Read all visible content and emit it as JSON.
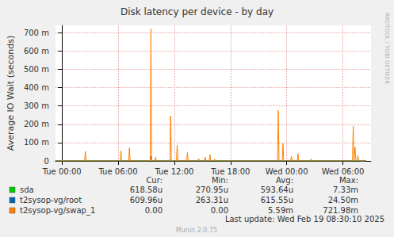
{
  "chart_data": {
    "type": "line",
    "title": "Disk latency per device - by day",
    "y_label": "Average IO Wait (seconds)",
    "xlim": [
      -0.7,
      33
    ],
    "xticks": [
      {
        "value": 0,
        "label": "Tue 00:00"
      },
      {
        "value": 6,
        "label": "Tue 06:00"
      },
      {
        "value": 12,
        "label": "Tue 12:00"
      },
      {
        "value": 18,
        "label": "Tue 18:00"
      },
      {
        "value": 24,
        "label": "Wed 00:00"
      },
      {
        "value": 30,
        "label": "Wed 06:00"
      }
    ],
    "ylim": [
      0,
      0.74
    ],
    "yticks": [
      0,
      {
        "value": 0.1,
        "label": "100 m"
      },
      {
        "value": 0.2,
        "label": "200 m"
      },
      {
        "value": 0.3,
        "label": "300 m"
      },
      {
        "value": 0.4,
        "label": "400 m"
      },
      {
        "value": 0.5,
        "label": "500 m"
      },
      {
        "value": 0.6,
        "label": "600 m"
      },
      {
        "value": 0.7,
        "label": "700 m"
      }
    ],
    "grid": true,
    "x": [
      -0.7,
      2.42,
      2.5,
      2.58,
      6.22,
      6.3,
      6.38,
      7.12,
      7.2,
      7.28,
      9.42,
      9.5,
      9.58,
      9.92,
      10.0,
      10.08,
      11.52,
      11.6,
      11.68,
      12.22,
      12.3,
      12.38,
      13.32,
      13.4,
      13.48,
      14.52,
      14.6,
      14.68,
      15.22,
      15.3,
      15.38,
      15.72,
      15.8,
      15.88,
      16.22,
      16.3,
      16.38,
      23.02,
      23.1,
      23.18,
      23.52,
      23.6,
      23.68,
      24.42,
      24.5,
      24.58,
      25.12,
      25.2,
      25.28,
      26.52,
      26.6,
      26.68,
      31.02,
      31.1,
      31.18,
      31.22,
      31.3,
      31.38,
      31.52,
      31.6,
      31.68,
      32.5
    ],
    "stats_header": [
      "Cur:",
      "Min:",
      "Avg:",
      "Max:"
    ],
    "series": [
      {
        "name": "sda",
        "color": "#00cc00",
        "stats": [
          "618.58u",
          "270.95u",
          "593.64u",
          "7.33m"
        ],
        "values": [
          0.0006,
          0.0006,
          0.0006,
          0.0006,
          0.0006,
          0.0006,
          0.0006,
          0.0006,
          0.0006,
          0.0006,
          0.0006,
          0.0006,
          0.0006,
          0.0006,
          0.0006,
          0.0006,
          0.0006,
          0.00733,
          0.0006,
          0.0006,
          0.0006,
          0.0006,
          0.0006,
          0.0006,
          0.0006,
          0.0006,
          0.0006,
          0.0006,
          0.0006,
          0.0006,
          0.0006,
          0.0006,
          0.0006,
          0.0006,
          0.0006,
          0.0006,
          0.0006,
          0.0006,
          0.0006,
          0.0006,
          0.00027,
          0.0006,
          0.0006,
          0.0006,
          0.0006,
          0.0006,
          0.0006,
          0.0006,
          0.0006,
          0.0006,
          0.0006,
          0.0006,
          0.0006,
          0.0006,
          0.0006,
          0.0006,
          0.0006,
          0.0006,
          0.0006,
          0.0006,
          0.0006,
          0.00062
        ]
      },
      {
        "name": "t2sysop-vg/root",
        "color": "#0066b3",
        "stats": [
          "609.96u",
          "263.31u",
          "615.55u",
          "24.50m"
        ],
        "values": [
          0.0006,
          0.0006,
          0.0006,
          0.0006,
          0.0006,
          0.0006,
          0.0006,
          0.0006,
          0.0006,
          0.0006,
          0.0006,
          0.0245,
          0.0006,
          0.0006,
          0.0006,
          0.0006,
          0.0006,
          0.0006,
          0.0006,
          0.0006,
          0.0006,
          0.0006,
          0.0006,
          0.0006,
          0.0006,
          0.0006,
          0.0006,
          0.0006,
          0.0006,
          0.0006,
          0.0006,
          0.0006,
          0.0006,
          0.0006,
          0.0006,
          0.0006,
          0.0006,
          0.0006,
          0.0006,
          0.0006,
          0.0006,
          0.00026,
          0.0006,
          0.0006,
          0.0006,
          0.0006,
          0.0006,
          0.0006,
          0.0006,
          0.0006,
          0.0006,
          0.0006,
          0.0006,
          0.0006,
          0.0006,
          0.0006,
          0.0006,
          0.0006,
          0.0006,
          0.0006,
          0.0006,
          0.00061
        ]
      },
      {
        "name": "t2sysop-vg/swap_1",
        "color": "#ff8000",
        "stats": [
          "0.00",
          "0.00",
          "5.59m",
          "721.98m"
        ],
        "values": [
          0,
          0,
          0.052,
          0,
          0,
          0.055,
          0,
          0,
          0.072,
          0,
          0,
          0.722,
          0,
          0,
          0.02,
          0,
          0,
          0.245,
          0,
          0,
          0.085,
          0,
          0,
          0.045,
          0,
          0,
          0.012,
          0,
          0,
          0.02,
          0,
          0,
          0.035,
          0,
          0,
          0.01,
          0,
          0,
          0.275,
          0,
          0,
          0.095,
          0,
          0,
          0.025,
          0,
          0,
          0.04,
          0,
          0,
          0.01,
          0,
          0,
          0.19,
          0,
          0,
          0.075,
          0,
          0,
          0.03,
          0,
          0
        ]
      }
    ],
    "last_update": "Last update: Wed Feb 19 08:30:10 2025",
    "footer": "Munin 2.0.75",
    "watermark": "RRDTOOL / TOBI OETIKER"
  }
}
